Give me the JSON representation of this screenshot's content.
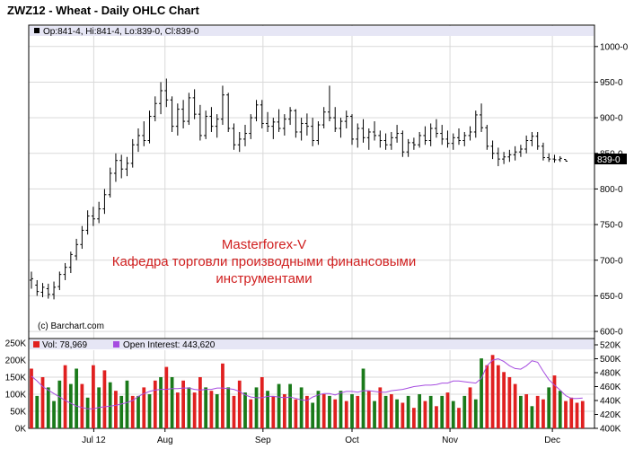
{
  "title": "ZWZ12 - Wheat - Daily OHLC Chart",
  "price_legend": "Op:841-4, Hi:841-4, Lo:839-0, Cl:839-0",
  "last_price_label": "839-0",
  "copyright": "(c) Barchart.com",
  "watermark": {
    "line1": "Masterforex-V",
    "line2": "Кафедра торговли производными финансовыми",
    "line3": "инструментами"
  },
  "volume_legend": "Vol: 78,969",
  "oi_legend": "Open Interest: 443,620",
  "colors": {
    "ohlc": "#000000",
    "volume_up": "#1a7a1a",
    "volume_down": "#e02020",
    "open_interest": "#a64de0",
    "legend_bg": "#e6e6f5",
    "grid": "#d9d9d9",
    "watermark": "#d02020"
  },
  "chart_data": [
    {
      "type": "ohlc",
      "title": "ZWZ12 - Wheat - Daily OHLC Chart",
      "ylim": [
        590,
        1030
      ],
      "y_ticks": [
        "1000-0",
        "950-0",
        "900-0",
        "850-0",
        "800-0",
        "750-0",
        "700-0",
        "650-0",
        "600-0"
      ],
      "x_ticks": [
        "Jul 12",
        "Aug",
        "Sep",
        "Oct",
        "Nov",
        "Dec"
      ],
      "grid": true,
      "y_axis_side": "right",
      "bars": [
        {
          "o": 672,
          "h": 684,
          "l": 660,
          "c": 674
        },
        {
          "o": 665,
          "h": 672,
          "l": 650,
          "c": 656
        },
        {
          "o": 655,
          "h": 668,
          "l": 648,
          "c": 662
        },
        {
          "o": 660,
          "h": 667,
          "l": 646,
          "c": 652
        },
        {
          "o": 652,
          "h": 670,
          "l": 645,
          "c": 662
        },
        {
          "o": 663,
          "h": 684,
          "l": 658,
          "c": 680
        },
        {
          "o": 680,
          "h": 696,
          "l": 672,
          "c": 690
        },
        {
          "o": 690,
          "h": 712,
          "l": 682,
          "c": 708
        },
        {
          "o": 706,
          "h": 730,
          "l": 700,
          "c": 722
        },
        {
          "o": 722,
          "h": 748,
          "l": 716,
          "c": 742
        },
        {
          "o": 742,
          "h": 770,
          "l": 736,
          "c": 762
        },
        {
          "o": 762,
          "h": 775,
          "l": 748,
          "c": 758
        },
        {
          "o": 758,
          "h": 782,
          "l": 752,
          "c": 772
        },
        {
          "o": 772,
          "h": 800,
          "l": 765,
          "c": 792
        },
        {
          "o": 792,
          "h": 830,
          "l": 788,
          "c": 822
        },
        {
          "o": 822,
          "h": 850,
          "l": 810,
          "c": 840
        },
        {
          "o": 840,
          "h": 848,
          "l": 815,
          "c": 828
        },
        {
          "o": 828,
          "h": 845,
          "l": 818,
          "c": 836
        },
        {
          "o": 836,
          "h": 870,
          "l": 830,
          "c": 862
        },
        {
          "o": 862,
          "h": 885,
          "l": 852,
          "c": 875
        },
        {
          "o": 875,
          "h": 895,
          "l": 860,
          "c": 868
        },
        {
          "o": 868,
          "h": 910,
          "l": 864,
          "c": 902
        },
        {
          "o": 902,
          "h": 930,
          "l": 895,
          "c": 920
        },
        {
          "o": 920,
          "h": 950,
          "l": 905,
          "c": 938
        },
        {
          "o": 938,
          "h": 955,
          "l": 915,
          "c": 925
        },
        {
          "o": 925,
          "h": 930,
          "l": 880,
          "c": 888
        },
        {
          "o": 888,
          "h": 920,
          "l": 875,
          "c": 912
        },
        {
          "o": 912,
          "h": 925,
          "l": 885,
          "c": 895
        },
        {
          "o": 895,
          "h": 935,
          "l": 890,
          "c": 928
        },
        {
          "o": 928,
          "h": 940,
          "l": 898,
          "c": 905
        },
        {
          "o": 905,
          "h": 918,
          "l": 868,
          "c": 875
        },
        {
          "o": 875,
          "h": 910,
          "l": 870,
          "c": 902
        },
        {
          "o": 902,
          "h": 915,
          "l": 880,
          "c": 888
        },
        {
          "o": 888,
          "h": 905,
          "l": 872,
          "c": 898
        },
        {
          "o": 898,
          "h": 945,
          "l": 890,
          "c": 932
        },
        {
          "o": 932,
          "h": 935,
          "l": 880,
          "c": 885
        },
        {
          "o": 885,
          "h": 892,
          "l": 855,
          "c": 862
        },
        {
          "o": 862,
          "h": 880,
          "l": 852,
          "c": 870
        },
        {
          "o": 870,
          "h": 890,
          "l": 860,
          "c": 878
        },
        {
          "o": 878,
          "h": 905,
          "l": 870,
          "c": 900
        },
        {
          "o": 900,
          "h": 925,
          "l": 895,
          "c": 918
        },
        {
          "o": 918,
          "h": 925,
          "l": 885,
          "c": 892
        },
        {
          "o": 892,
          "h": 908,
          "l": 880,
          "c": 888
        },
        {
          "o": 888,
          "h": 900,
          "l": 870,
          "c": 894
        },
        {
          "o": 894,
          "h": 912,
          "l": 880,
          "c": 885
        },
        {
          "o": 885,
          "h": 905,
          "l": 875,
          "c": 898
        },
        {
          "o": 898,
          "h": 915,
          "l": 890,
          "c": 910
        },
        {
          "o": 910,
          "h": 912,
          "l": 872,
          "c": 880
        },
        {
          "o": 880,
          "h": 900,
          "l": 868,
          "c": 892
        },
        {
          "o": 892,
          "h": 906,
          "l": 875,
          "c": 888
        },
        {
          "o": 888,
          "h": 900,
          "l": 860,
          "c": 868
        },
        {
          "o": 868,
          "h": 895,
          "l": 862,
          "c": 890
        },
        {
          "o": 890,
          "h": 915,
          "l": 885,
          "c": 908
        },
        {
          "o": 908,
          "h": 945,
          "l": 895,
          "c": 900
        },
        {
          "o": 900,
          "h": 915,
          "l": 880,
          "c": 885
        },
        {
          "o": 885,
          "h": 900,
          "l": 872,
          "c": 895
        },
        {
          "o": 895,
          "h": 910,
          "l": 885,
          "c": 902
        },
        {
          "o": 902,
          "h": 905,
          "l": 862,
          "c": 870
        },
        {
          "o": 870,
          "h": 892,
          "l": 858,
          "c": 885
        },
        {
          "o": 885,
          "h": 898,
          "l": 865,
          "c": 872
        },
        {
          "o": 872,
          "h": 885,
          "l": 855,
          "c": 880
        },
        {
          "o": 880,
          "h": 895,
          "l": 868,
          "c": 875
        },
        {
          "o": 875,
          "h": 882,
          "l": 858,
          "c": 868
        },
        {
          "o": 868,
          "h": 878,
          "l": 855,
          "c": 862
        },
        {
          "o": 862,
          "h": 880,
          "l": 855,
          "c": 872
        },
        {
          "o": 872,
          "h": 890,
          "l": 865,
          "c": 878
        },
        {
          "o": 878,
          "h": 882,
          "l": 845,
          "c": 852
        },
        {
          "o": 852,
          "h": 870,
          "l": 845,
          "c": 865
        },
        {
          "o": 865,
          "h": 872,
          "l": 855,
          "c": 862
        },
        {
          "o": 862,
          "h": 880,
          "l": 858,
          "c": 875
        },
        {
          "o": 875,
          "h": 888,
          "l": 862,
          "c": 868
        },
        {
          "o": 868,
          "h": 892,
          "l": 860,
          "c": 885
        },
        {
          "o": 885,
          "h": 898,
          "l": 872,
          "c": 878
        },
        {
          "o": 878,
          "h": 890,
          "l": 862,
          "c": 870
        },
        {
          "o": 870,
          "h": 882,
          "l": 858,
          "c": 864
        },
        {
          "o": 864,
          "h": 878,
          "l": 855,
          "c": 872
        },
        {
          "o": 872,
          "h": 885,
          "l": 862,
          "c": 868
        },
        {
          "o": 868,
          "h": 880,
          "l": 860,
          "c": 875
        },
        {
          "o": 875,
          "h": 888,
          "l": 868,
          "c": 880
        },
        {
          "o": 880,
          "h": 910,
          "l": 872,
          "c": 904
        },
        {
          "o": 904,
          "h": 920,
          "l": 880,
          "c": 886
        },
        {
          "o": 886,
          "h": 890,
          "l": 855,
          "c": 860
        },
        {
          "o": 860,
          "h": 868,
          "l": 842,
          "c": 850
        },
        {
          "o": 850,
          "h": 858,
          "l": 832,
          "c": 842
        },
        {
          "o": 842,
          "h": 852,
          "l": 835,
          "c": 845
        },
        {
          "o": 845,
          "h": 855,
          "l": 838,
          "c": 848
        },
        {
          "o": 848,
          "h": 860,
          "l": 840,
          "c": 852
        },
        {
          "o": 852,
          "h": 862,
          "l": 845,
          "c": 856
        },
        {
          "o": 856,
          "h": 875,
          "l": 850,
          "c": 868
        },
        {
          "o": 868,
          "h": 880,
          "l": 860,
          "c": 874
        },
        {
          "o": 874,
          "h": 880,
          "l": 855,
          "c": 860
        },
        {
          "o": 860,
          "h": 865,
          "l": 840,
          "c": 844
        },
        {
          "o": 844,
          "h": 850,
          "l": 838,
          "c": 842
        },
        {
          "o": 842,
          "h": 848,
          "l": 837,
          "c": 841
        },
        {
          "o": 841,
          "h": 846,
          "l": 838,
          "c": 843
        },
        {
          "o": 841.5,
          "h": 841.5,
          "l": 839,
          "c": 839
        }
      ]
    },
    {
      "type": "bar",
      "ylim": [
        0,
        250000
      ],
      "y_ticks_left": [
        "250K",
        "200K",
        "150K",
        "100K",
        "50K",
        "0K"
      ],
      "y_ticks_right": [
        "520K",
        "500K",
        "480K",
        "460K",
        "440K",
        "420K",
        "400K"
      ],
      "y2lim": [
        400000,
        520000
      ],
      "series": [
        {
          "name": "Vol: 78,969",
          "values": [
            175000,
            95000,
            150000,
            120000,
            80000,
            140000,
            185000,
            130000,
            175000,
            130000,
            90000,
            185000,
            120000,
            170000,
            135000,
            110000,
            95000,
            140000,
            95000,
            95000,
            120000,
            100000,
            140000,
            150000,
            180000,
            150000,
            105000,
            140000,
            120000,
            105000,
            150000,
            120000,
            110000,
            100000,
            190000,
            120000,
            95000,
            140000,
            105000,
            85000,
            120000,
            150000,
            110000,
            95000,
            130000,
            100000,
            130000,
            85000,
            120000,
            95000,
            75000,
            110000,
            100000,
            95000,
            85000,
            110000,
            80000,
            100000,
            95000,
            175000,
            110000,
            80000,
            120000,
            95000,
            100000,
            85000,
            75000,
            95000,
            60000,
            100000,
            80000,
            95000,
            65000,
            95000,
            105000,
            80000,
            60000,
            95000,
            120000,
            85000,
            205000,
            185000,
            215000,
            185000,
            165000,
            150000,
            130000,
            95000,
            100000,
            65000,
            95000,
            85000,
            120000,
            155000,
            110000,
            80000,
            90000,
            75000,
            80000
          ],
          "up_days": [
            false,
            true,
            false,
            true,
            true,
            true,
            false,
            true,
            true,
            false,
            true,
            false,
            true,
            false,
            true,
            false,
            true,
            true,
            false,
            true,
            false,
            true,
            false,
            true,
            false,
            true,
            false,
            false,
            true,
            false,
            false,
            true,
            false,
            true,
            false,
            true,
            false,
            false,
            true,
            false,
            true,
            false,
            true,
            false,
            true,
            false,
            true,
            false,
            true,
            false,
            true,
            true,
            false,
            true,
            false,
            true,
            false,
            true,
            false,
            true,
            false,
            true,
            false,
            true,
            false,
            true,
            false,
            true,
            false,
            true,
            false,
            true,
            false,
            true,
            false,
            true,
            false,
            true,
            false,
            true,
            true,
            false,
            false,
            false,
            false,
            false,
            false,
            true,
            false,
            true,
            false,
            false,
            true,
            false,
            true,
            false,
            false,
            false,
            false
          ]
        },
        {
          "name": "Open Interest: 443,620",
          "values": [
            475000,
            468000,
            460000,
            455000,
            450000,
            445000,
            440000,
            436000,
            432000,
            430000,
            428000,
            428000,
            430000,
            431000,
            432000,
            433000,
            435000,
            437000,
            440000,
            446000,
            450000,
            453000,
            455000,
            456000,
            456000,
            457000,
            457000,
            458000,
            458000,
            456000,
            455000,
            456000,
            456000,
            458000,
            458000,
            457000,
            456000,
            453000,
            448000,
            445000,
            444000,
            444000,
            446000,
            446000,
            445000,
            444000,
            445000,
            443000,
            441000,
            440000,
            445000,
            448000,
            450000,
            450000,
            448000,
            451000,
            453000,
            453000,
            452000,
            454000,
            454000,
            453000,
            452000,
            452000,
            454000,
            455000,
            456000,
            458000,
            460000,
            461000,
            462000,
            462000,
            463000,
            465000,
            465000,
            468000,
            468000,
            467000,
            466000,
            465000,
            472000,
            490000,
            498000,
            500000,
            496000,
            490000,
            486000,
            485000,
            490000,
            497000,
            495000,
            482000,
            470000,
            462000,
            455000,
            447000,
            443000,
            443000,
            443620
          ]
        }
      ]
    }
  ]
}
